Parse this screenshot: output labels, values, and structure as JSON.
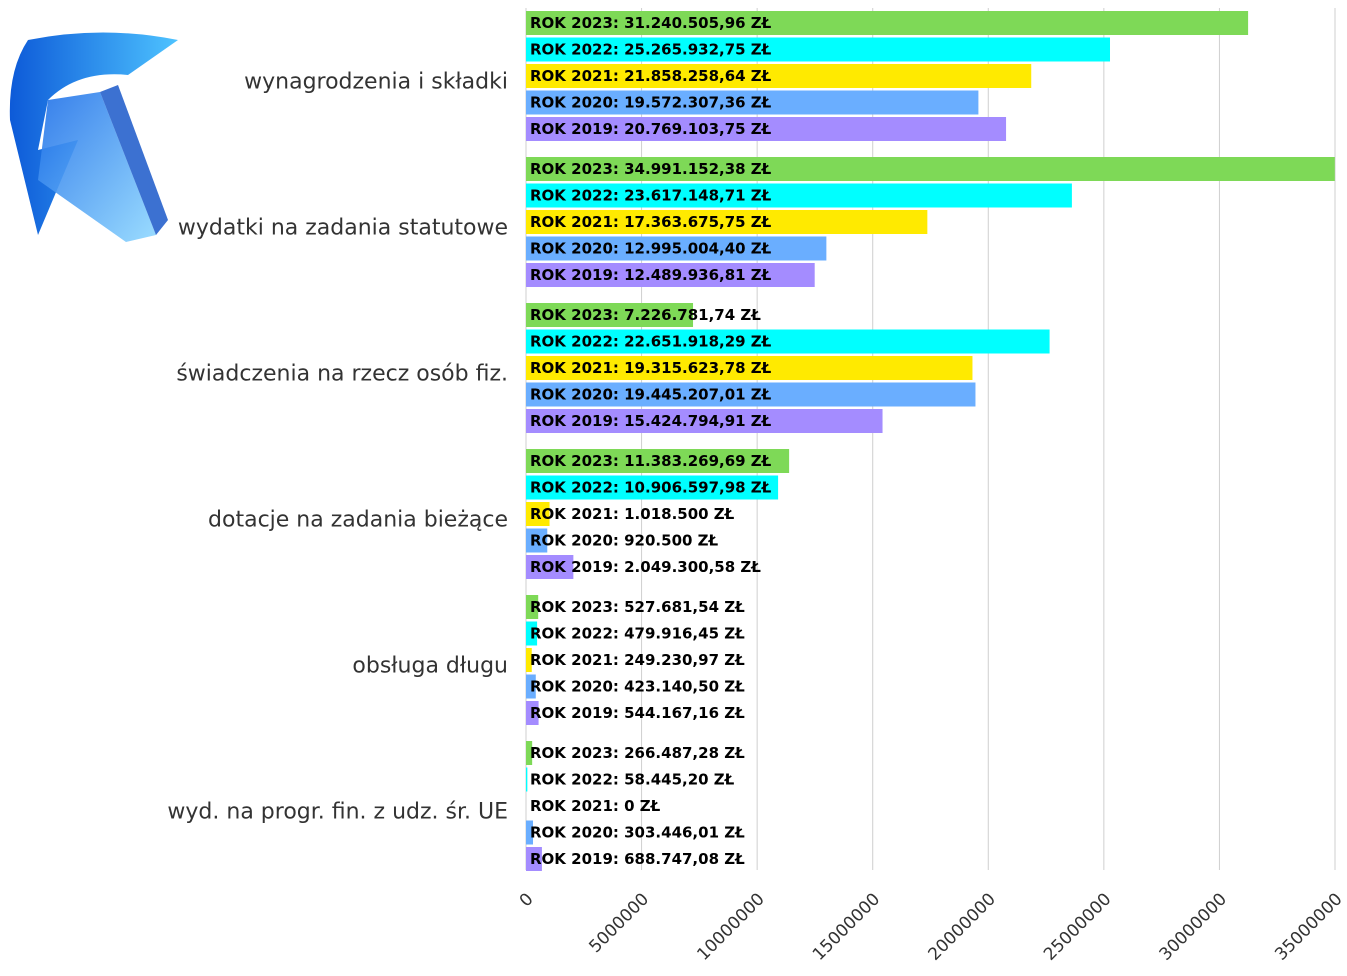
{
  "chart_data": {
    "type": "bar",
    "orientation": "horizontal",
    "grid": true,
    "xlim": [
      0,
      35000000
    ],
    "x_ticks": [
      "0",
      "5000000",
      "10000000",
      "15000000",
      "20000000",
      "25000000",
      "30000000",
      "35000000"
    ],
    "categories": [
      "wynagrodzenia i składki",
      "wydatki na zadania statutowe",
      "świadczenia na rzecz osób fiz.",
      "dotacje na zadania bieżące",
      "obsługa długu",
      "wyd. na progr. fin. z udz. śr. UE"
    ],
    "series": [
      {
        "color": "#7ed957",
        "values": [
          31240505.96,
          34991152.38,
          7226781.74,
          11383269.69,
          527681.54,
          266487.28
        ]
      },
      {
        "color": "#00ffff",
        "values": [
          25265932.75,
          23617148.71,
          22651918.29,
          10906597.98,
          479916.45,
          58445.2
        ]
      },
      {
        "color": "#ffea00",
        "values": [
          21858258.64,
          17363675.75,
          19315623.78,
          1018500,
          249230.97,
          0
        ]
      },
      {
        "color": "#6aaeff",
        "values": [
          19572307.36,
          12995004.4,
          19445207.01,
          920500,
          423140.5,
          303446.01
        ]
      },
      {
        "color": "#a48cff",
        "values": [
          20769103.75,
          12489936.81,
          15424794.91,
          2049300.58,
          544167.16,
          688747.08
        ]
      }
    ],
    "data_labels": [
      [
        "ROK 2023: 31.240.505,96 ZŁ",
        "ROK 2022: 25.265.932,75 ZŁ",
        "ROK 2021: 21.858.258,64 ZŁ",
        "ROK 2020: 19.572.307,36 ZŁ",
        "ROK 2019: 20.769.103,75 ZŁ"
      ],
      [
        "ROK 2023: 34.991.152,38 ZŁ",
        "ROK 2022: 23.617.148,71 ZŁ",
        "ROK 2021: 17.363.675,75 ZŁ",
        "ROK 2020: 12.995.004,40 ZŁ",
        "ROK 2019: 12.489.936,81 ZŁ"
      ],
      [
        "ROK 2023: 7.226.781,74 ZŁ",
        "ROK 2022: 22.651.918,29 ZŁ",
        "ROK 2021: 19.315.623,78 ZŁ",
        "ROK 2020: 19.445.207,01 ZŁ",
        "ROK 2019: 15.424.794,91 ZŁ"
      ],
      [
        "ROK 2023: 11.383.269,69 ZŁ",
        "ROK 2022: 10.906.597,98 ZŁ",
        "ROK 2021: 1.018.500 ZŁ",
        "ROK 2020: 920.500 ZŁ",
        "ROK 2019: 2.049.300,58 ZŁ"
      ],
      [
        "ROK 2023: 527.681,54 ZŁ",
        "ROK 2022: 479.916,45 ZŁ",
        "ROK 2021: 249.230,97 ZŁ",
        "ROK 2020: 423.140,50 ZŁ",
        "ROK 2019: 544.167,16 ZŁ"
      ],
      [
        "ROK 2023: 266.487,28 ZŁ",
        "ROK 2022: 58.445,20 ZŁ",
        "ROK 2021: 0 ZŁ",
        "ROK 2020: 303.446,01 ZŁ",
        "ROK 2019: 688.747,08 ZŁ"
      ]
    ]
  },
  "logo": {
    "icon": "blue-curved-arrow-icon",
    "colors": [
      "#1e6fe8",
      "#3fb4ff"
    ]
  }
}
